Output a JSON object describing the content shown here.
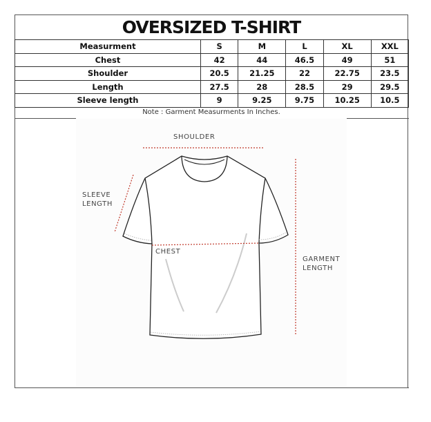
{
  "title": "OVERSIZED T-SHIRT",
  "table": {
    "headers": [
      "Measurment",
      "S",
      "M",
      "L",
      "XL",
      "XXL"
    ],
    "rows": [
      [
        "Chest",
        "42",
        "44",
        "46.5",
        "49",
        "51"
      ],
      [
        "Shoulder",
        "20.5",
        "21.25",
        "22",
        "22.75",
        "23.5"
      ],
      [
        "Length",
        "27.5",
        "28",
        "28.5",
        "29",
        "29.5"
      ],
      [
        "Sleeve length",
        "9",
        "9.25",
        "9.75",
        "10.25",
        "10.5"
      ]
    ]
  },
  "note": "Note : Garment Measurments In Inches.",
  "diagram": {
    "shoulder": "SHOULDER",
    "sleeve_1": "SLEEVE",
    "sleeve_2": "LENGTH",
    "chest": "CHEST",
    "garment_1": "GARMENT",
    "garment_2": "LENGTH",
    "dotted_color": "#c0392b"
  }
}
